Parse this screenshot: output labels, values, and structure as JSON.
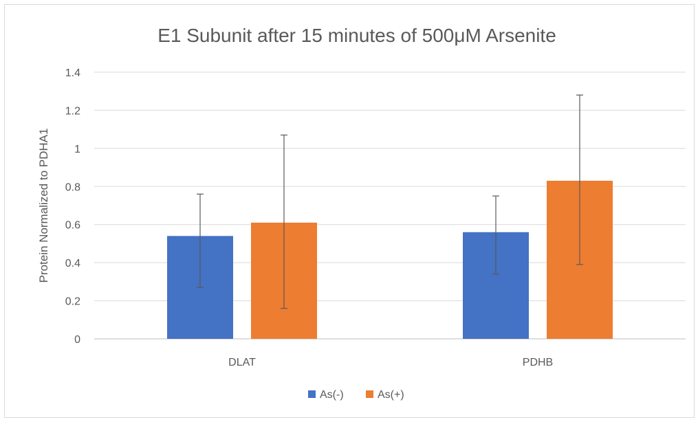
{
  "chart_data": {
    "type": "bar",
    "title": "E1 Subunit after 15 minutes of 500μM Arsenite",
    "xlabel": "",
    "ylabel": "Protein Normalized to PDHA1",
    "ylim": [
      0,
      1.4
    ],
    "yticks": [
      0,
      0.2,
      0.4,
      0.6,
      0.8,
      1,
      1.2,
      1.4
    ],
    "ytick_labels": [
      "0",
      "0.2",
      "0.4",
      "0.6",
      "0.8",
      "1",
      "1.2",
      "1.4"
    ],
    "grid": true,
    "legend_position": "bottom",
    "categories": [
      "DLAT",
      "PDHB"
    ],
    "series": [
      {
        "name": "As(-)",
        "color": "#4472c4",
        "values": [
          0.54,
          0.56
        ],
        "error_low": [
          0.27,
          0.34
        ],
        "error_high": [
          0.76,
          0.75
        ]
      },
      {
        "name": "As(+)",
        "color": "#ed7d31",
        "values": [
          0.61,
          0.83
        ],
        "error_low": [
          0.16,
          0.39
        ],
        "error_high": [
          1.07,
          1.28
        ]
      }
    ]
  }
}
